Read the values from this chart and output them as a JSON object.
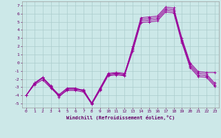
{
  "background_color": "#cce8e8",
  "grid_color": "#aacccc",
  "line_color": "#990099",
  "xlabel": "Windchill (Refroidissement éolien,°C)",
  "xlabel_color": "#660066",
  "x_ticks": [
    0,
    1,
    2,
    3,
    4,
    5,
    6,
    7,
    8,
    9,
    10,
    11,
    12,
    13,
    14,
    15,
    16,
    17,
    18,
    19,
    20,
    21,
    22,
    23
  ],
  "ylim": [
    -5.5,
    7.5
  ],
  "xlim": [
    -0.5,
    23.5
  ],
  "y_ticks": [
    -5,
    -4,
    -3,
    -2,
    -1,
    0,
    1,
    2,
    3,
    4,
    5,
    6,
    7
  ],
  "line1_y": [
    -4.0,
    -2.5,
    -1.8,
    -2.8,
    -4.2,
    -3.3,
    -3.3,
    -3.3,
    -5.0,
    -3.3,
    -1.5,
    -1.4,
    -1.5,
    2.0,
    5.5,
    5.6,
    5.7,
    6.8,
    6.7,
    3.0,
    0.0,
    -1.1,
    -1.2,
    -1.2
  ],
  "line2_y": [
    -4.0,
    -2.5,
    -1.8,
    -2.9,
    -3.9,
    -3.1,
    -3.1,
    -3.4,
    -4.9,
    -3.1,
    -1.3,
    -1.2,
    -1.3,
    1.8,
    5.3,
    5.4,
    5.5,
    6.6,
    6.5,
    2.8,
    -0.2,
    -1.3,
    -1.4,
    -2.5
  ],
  "line3_y": [
    -4.0,
    -2.6,
    -1.9,
    -3.0,
    -4.0,
    -3.2,
    -3.2,
    -3.5,
    -5.0,
    -3.2,
    -1.4,
    -1.3,
    -1.4,
    1.6,
    5.1,
    5.2,
    5.3,
    6.4,
    6.3,
    2.6,
    -0.4,
    -1.5,
    -1.6,
    -2.7
  ],
  "line4_y": [
    -4.0,
    -2.7,
    -2.1,
    -3.1,
    -4.1,
    -3.4,
    -3.4,
    -3.6,
    -5.1,
    -3.4,
    -1.6,
    -1.5,
    -1.6,
    1.4,
    4.9,
    5.0,
    5.1,
    6.2,
    6.1,
    2.4,
    -0.6,
    -1.7,
    -1.8,
    -2.9
  ]
}
